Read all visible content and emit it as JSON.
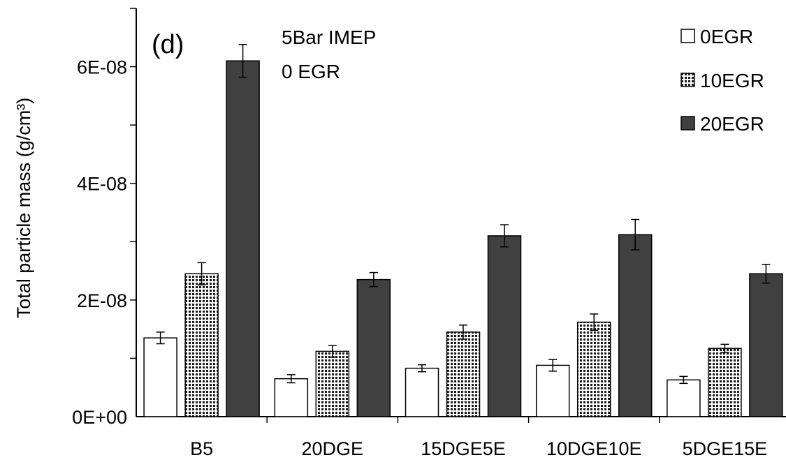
{
  "chart_data": {
    "type": "bar",
    "title": "",
    "panel_label": "(d)",
    "annotations": [
      "5Bar IMEP",
      "0 EGR"
    ],
    "xlabel": "",
    "ylabel": "Total particle mass (g/cm³)",
    "ylim": [
      0,
      7e-08
    ],
    "yticks": [
      {
        "value": 0,
        "label": "0E+00"
      },
      {
        "value": 2e-08,
        "label": "2E-08"
      },
      {
        "value": 4e-08,
        "label": "4E-08"
      },
      {
        "value": 6e-08,
        "label": "6E-08"
      }
    ],
    "y_minor_step": 1e-08,
    "categories": [
      "B5",
      "20DGE",
      "15DGE5E",
      "10DGE10E",
      "5DGE15E"
    ],
    "series": [
      {
        "name": "0EGR",
        "fill": "#ffffff",
        "pattern": "none",
        "values": [
          1.35e-08,
          6.5e-09,
          8.3e-09,
          8.8e-09,
          6.3e-09
        ],
        "errors": [
          1e-09,
          7e-10,
          6e-10,
          1e-09,
          6e-10
        ]
      },
      {
        "name": "10EGR",
        "fill": "#333333",
        "pattern": "dots",
        "values": [
          2.45e-08,
          1.12e-08,
          1.45e-08,
          1.62e-08,
          1.17e-08
        ],
        "errors": [
          1.9e-09,
          1e-09,
          1.2e-09,
          1.4e-09,
          7e-10
        ]
      },
      {
        "name": "20EGR",
        "fill": "#404040",
        "pattern": "none",
        "values": [
          6.1e-08,
          2.35e-08,
          3.1e-08,
          3.12e-08,
          2.45e-08
        ],
        "errors": [
          2.8e-09,
          1.2e-09,
          1.9e-09,
          2.6e-09,
          1.6e-09
        ]
      }
    ],
    "legend": {
      "position": "top-right"
    },
    "grid": false
  }
}
